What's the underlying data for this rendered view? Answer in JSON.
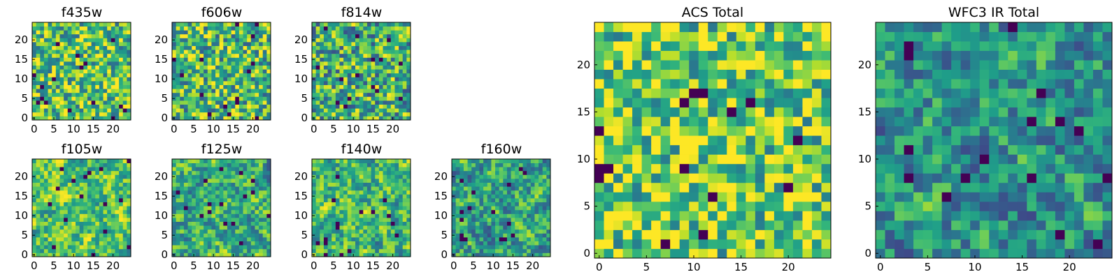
{
  "chart_data": {
    "type": "heatmap",
    "colormap": "viridis",
    "panels": [
      {
        "title": "f435w",
        "grid_size": 25,
        "seed": 11,
        "smooth": 0,
        "bias": 0.1,
        "xticks": [
          0,
          5,
          10,
          15,
          20
        ],
        "yticks": [
          0,
          5,
          10,
          15,
          20
        ],
        "axis_range": [
          0,
          24
        ]
      },
      {
        "title": "f606w",
        "grid_size": 25,
        "seed": 23,
        "smooth": 0,
        "bias": 0.05,
        "xticks": [
          0,
          5,
          10,
          15,
          20
        ],
        "yticks": [
          0,
          5,
          10,
          15,
          20
        ],
        "axis_range": [
          0,
          24
        ]
      },
      {
        "title": "f814w",
        "grid_size": 25,
        "seed": 37,
        "smooth": 0,
        "bias": 0.0,
        "xticks": [
          0,
          5,
          10,
          15,
          20
        ],
        "yticks": [
          0,
          5,
          10,
          15,
          20
        ],
        "axis_range": [
          0,
          24
        ]
      },
      {
        "title": "f105w",
        "grid_size": 25,
        "seed": 41,
        "smooth": 1,
        "bias": 0.05,
        "xticks": [
          0,
          5,
          10,
          15,
          20
        ],
        "yticks": [
          0,
          5,
          10,
          15,
          20
        ],
        "axis_range": [
          0,
          24
        ]
      },
      {
        "title": "f125w",
        "grid_size": 25,
        "seed": 53,
        "smooth": 1,
        "bias": -0.05,
        "xticks": [
          0,
          5,
          10,
          15,
          20
        ],
        "yticks": [
          0,
          5,
          10,
          15,
          20
        ],
        "axis_range": [
          0,
          24
        ]
      },
      {
        "title": "f140w",
        "grid_size": 25,
        "seed": 67,
        "smooth": 1,
        "bias": 0.0,
        "xticks": [
          0,
          5,
          10,
          15,
          20
        ],
        "yticks": [
          0,
          5,
          10,
          15,
          20
        ],
        "axis_range": [
          0,
          24
        ]
      },
      {
        "title": "f160w",
        "grid_size": 25,
        "seed": 79,
        "smooth": 1,
        "bias": -0.1,
        "xticks": [
          0,
          5,
          10,
          15,
          20
        ],
        "yticks": [
          0,
          5,
          10,
          15,
          20
        ],
        "axis_range": [
          0,
          24
        ]
      },
      {
        "title": "ACS Total",
        "grid_size": 25,
        "seed": 97,
        "smooth": 0,
        "bias": 0.15,
        "xticks": [
          0,
          5,
          10,
          15,
          20
        ],
        "yticks": [
          0,
          5,
          10,
          15,
          20
        ],
        "axis_range": [
          0,
          24
        ]
      },
      {
        "title": "WFC3 IR Total",
        "grid_size": 25,
        "seed": 131,
        "smooth": 1,
        "bias": -0.15,
        "xticks": [
          0,
          5,
          10,
          15,
          20
        ],
        "yticks": [
          0,
          5,
          10,
          15,
          20
        ],
        "axis_range": [
          0,
          24
        ]
      }
    ]
  }
}
